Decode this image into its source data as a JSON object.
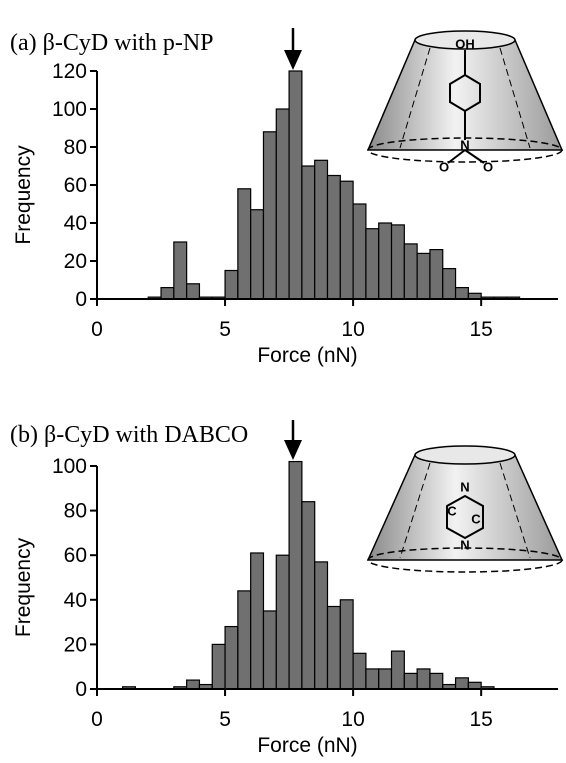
{
  "chart_data": [
    {
      "type": "histogram",
      "title": "(a) β-CyD with p-NP",
      "xlabel": "Force (nN)",
      "ylabel": "Frequency",
      "color": "#707070",
      "bins": [
        0,
        0.5,
        1,
        1.5,
        2,
        2.5,
        3,
        3.5,
        4,
        4.5,
        5,
        5.5,
        6,
        6.5,
        7,
        7.5,
        8,
        8.5,
        9,
        9.5,
        10,
        10.5,
        11,
        11.5,
        12,
        12.5,
        13,
        13.5,
        14,
        14.5,
        15,
        15.5,
        16,
        16.5,
        17,
        17.5,
        18
      ],
      "values": [
        0,
        0,
        0,
        0,
        1,
        6,
        30,
        8,
        1,
        1,
        15,
        58,
        47,
        88,
        100,
        120,
        70,
        73,
        65,
        62,
        50,
        37,
        40,
        39,
        29,
        24,
        26,
        16,
        6,
        3,
        1,
        1,
        1,
        0,
        0,
        0
      ],
      "xlim": [
        0,
        18
      ],
      "ylim": [
        0,
        120
      ],
      "xticks": [
        0,
        5,
        10,
        15
      ],
      "yticks": [
        0,
        20,
        40,
        60,
        80,
        100,
        120
      ],
      "inset_labels": [
        "OH",
        "N",
        "O",
        "O"
      ]
    },
    {
      "type": "histogram",
      "title": "(b) β-CyD with DABCO",
      "xlabel": "Force (nN)",
      "ylabel": "Frequency",
      "color": "#707070",
      "bins": [
        0,
        0.5,
        1,
        1.5,
        2,
        2.5,
        3,
        3.5,
        4,
        4.5,
        5,
        5.5,
        6,
        6.5,
        7,
        7.5,
        8,
        8.5,
        9,
        9.5,
        10,
        10.5,
        11,
        11.5,
        12,
        12.5,
        13,
        13.5,
        14,
        14.5,
        15,
        15.5,
        16,
        16.5,
        17,
        17.5,
        18
      ],
      "values": [
        0,
        0,
        1,
        0,
        0,
        0,
        1,
        4,
        2,
        20,
        28,
        44,
        61,
        35,
        60,
        102,
        84,
        57,
        37,
        40,
        16,
        9,
        9,
        17,
        7,
        9,
        7,
        2,
        5,
        3,
        1,
        0,
        0,
        0,
        0,
        0
      ],
      "xlim": [
        0,
        18
      ],
      "ylim": [
        0,
        100
      ],
      "xticks": [
        0,
        5,
        10,
        15
      ],
      "yticks": [
        0,
        20,
        40,
        60,
        80,
        100
      ],
      "inset_labels": [
        "N",
        "C",
        "C",
        "N"
      ]
    }
  ]
}
